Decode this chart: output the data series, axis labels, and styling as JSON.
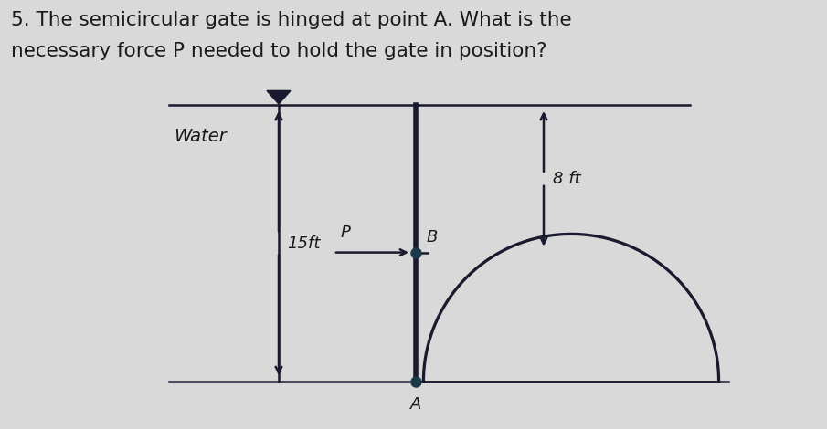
{
  "title_line1": "5. The semicircular gate is hinged at point A. What is the",
  "title_line2": "necessary force P needed to hold the gate in position?",
  "bg_color": "#d9d9d9",
  "line_color": "#1a1a2e",
  "text_color": "#1a1a1a",
  "title_fontsize": 15.5,
  "label_fontsize": 13,
  "water_label": "Water",
  "label_15ft": "15ft",
  "label_8ft": "8 ft",
  "label_P": "P",
  "label_B": "B",
  "label_A": "A",
  "gate_color": "#1a3a4a"
}
